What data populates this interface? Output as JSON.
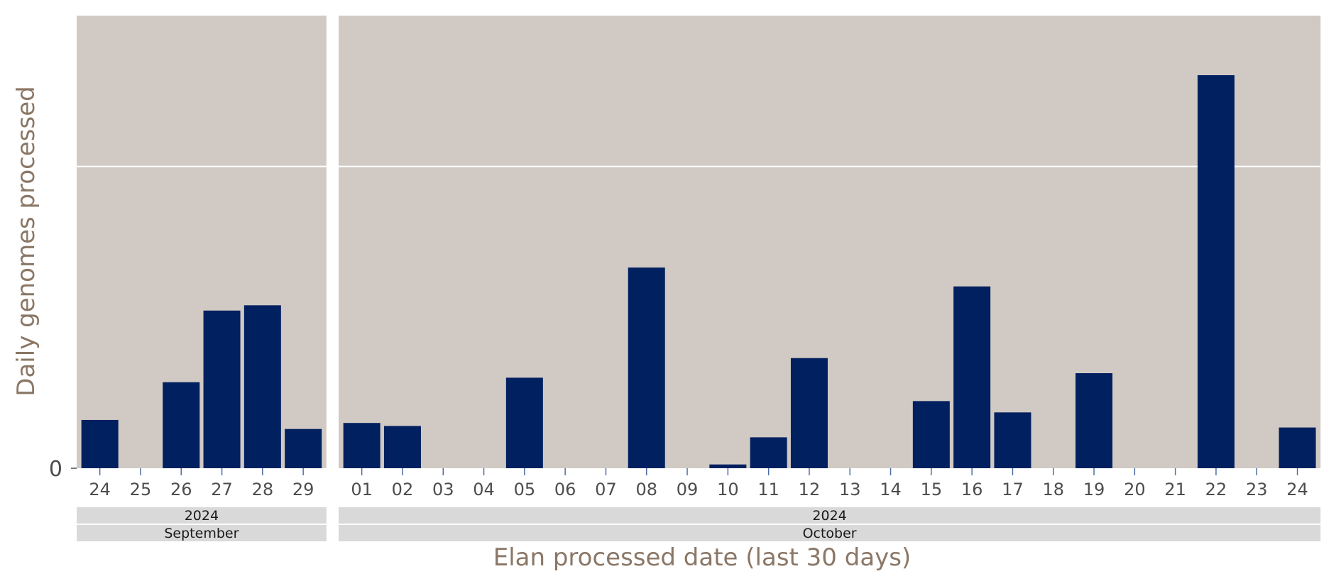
{
  "chart_data": {
    "type": "bar",
    "xlabel": "Elan processed date (last 30 days)",
    "ylabel": "Daily genomes processed",
    "y_ticks": [
      {
        "value": 0,
        "label": "0"
      }
    ],
    "y_gridlines": [
      0,
      40
    ],
    "ylim": [
      0,
      60
    ],
    "grid": true,
    "legend": "none",
    "colors": {
      "bar": "#002060",
      "panel_bg": "#d1c9c3",
      "strip_bg": "#d9d9d9",
      "axis_title": "#8b7766",
      "tick_mark": "#4a6fa5"
    },
    "panels": [
      {
        "year": "2024",
        "month": "September",
        "categories": [
          "24",
          "25",
          "26",
          "27",
          "28",
          "29"
        ],
        "values": [
          6.4,
          0,
          11.4,
          20.9,
          21.6,
          5.2
        ]
      },
      {
        "year": "2024",
        "month": "October",
        "categories": [
          "01",
          "02",
          "03",
          "04",
          "05",
          "06",
          "07",
          "08",
          "09",
          "10",
          "11",
          "12",
          "13",
          "14",
          "15",
          "16",
          "17",
          "18",
          "19",
          "20",
          "21",
          "22",
          "23",
          "24"
        ],
        "values": [
          6.0,
          5.6,
          0,
          0,
          12.0,
          0,
          0,
          26.6,
          0,
          0.5,
          4.1,
          14.6,
          0,
          0,
          8.9,
          24.1,
          7.4,
          0,
          12.6,
          0,
          0,
          52.1,
          0,
          5.4
        ]
      }
    ]
  }
}
